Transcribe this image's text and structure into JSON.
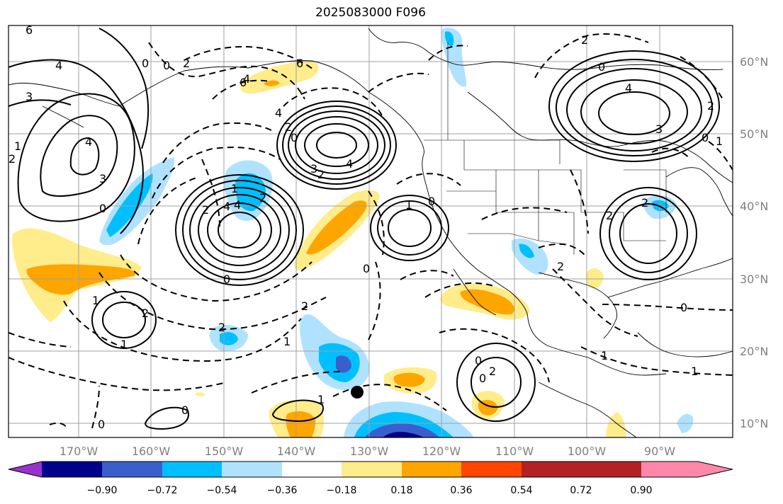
{
  "title": "2025083000 F096",
  "axes": {
    "lon_labels": [
      "170°W",
      "160°W",
      "150°W",
      "140°W",
      "130°W",
      "120°W",
      "110°W",
      "100°W",
      "90°W"
    ],
    "lat_labels": [
      "60°N",
      "50°N",
      "40°N",
      "30°N",
      "20°N",
      "10°N"
    ],
    "grid": true
  },
  "colorbar": {
    "tick_labels": [
      "−0.90",
      "−0.72",
      "−0.54",
      "−0.36",
      "−0.18",
      "0.18",
      "0.36",
      "0.54",
      "0.72",
      "0.90"
    ],
    "colors": [
      "#9932cc",
      "#00008b",
      "#3a5fcd",
      "#00bfff",
      "#b0e2ff",
      "#ffffff",
      "#ffec8b",
      "#ffa500",
      "#ff4500",
      "#b22222",
      "#ff88aa"
    ]
  },
  "contour_labels": [
    "6",
    "4",
    "3",
    "2",
    "0",
    "2",
    "6",
    "6",
    "4",
    "2",
    "0",
    "4",
    "3",
    "2",
    "4",
    "0",
    "4",
    "2",
    "0",
    "4",
    "3",
    "1",
    "2",
    "1",
    "2",
    "1",
    "0",
    "0",
    "1",
    "2",
    "1",
    "0",
    "0",
    "2",
    "0",
    "2",
    "4",
    "4",
    "3",
    "2",
    "2",
    "1",
    "0",
    "1",
    "2",
    "0",
    "0",
    "1",
    "1",
    "2",
    "2",
    "0",
    "0",
    "1"
  ],
  "marker": "storm-center-dot"
}
